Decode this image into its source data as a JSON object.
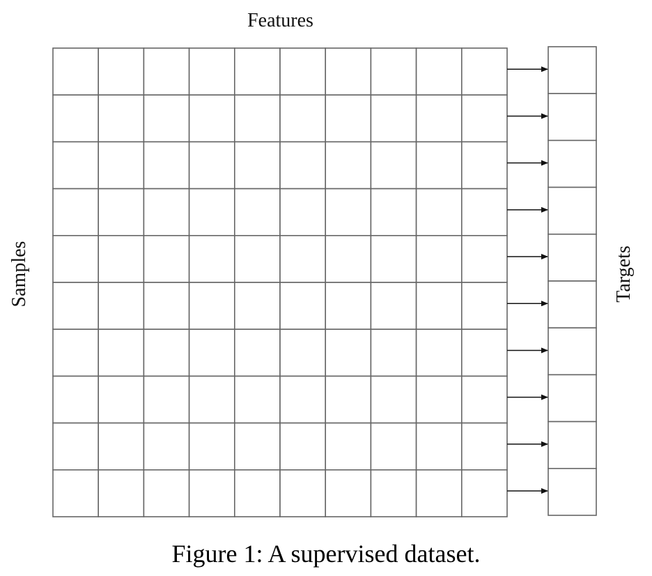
{
  "figure": {
    "features_label": "Features",
    "samples_label": "Samples",
    "targets_label": "Targets",
    "caption": "Figure 1: A supervised dataset."
  },
  "matrix": {
    "rows": 10,
    "feature_columns": 10,
    "target_columns": 1
  },
  "colors": {
    "grid_line": "#666666",
    "arrow": "#111111",
    "text": "#111111"
  }
}
